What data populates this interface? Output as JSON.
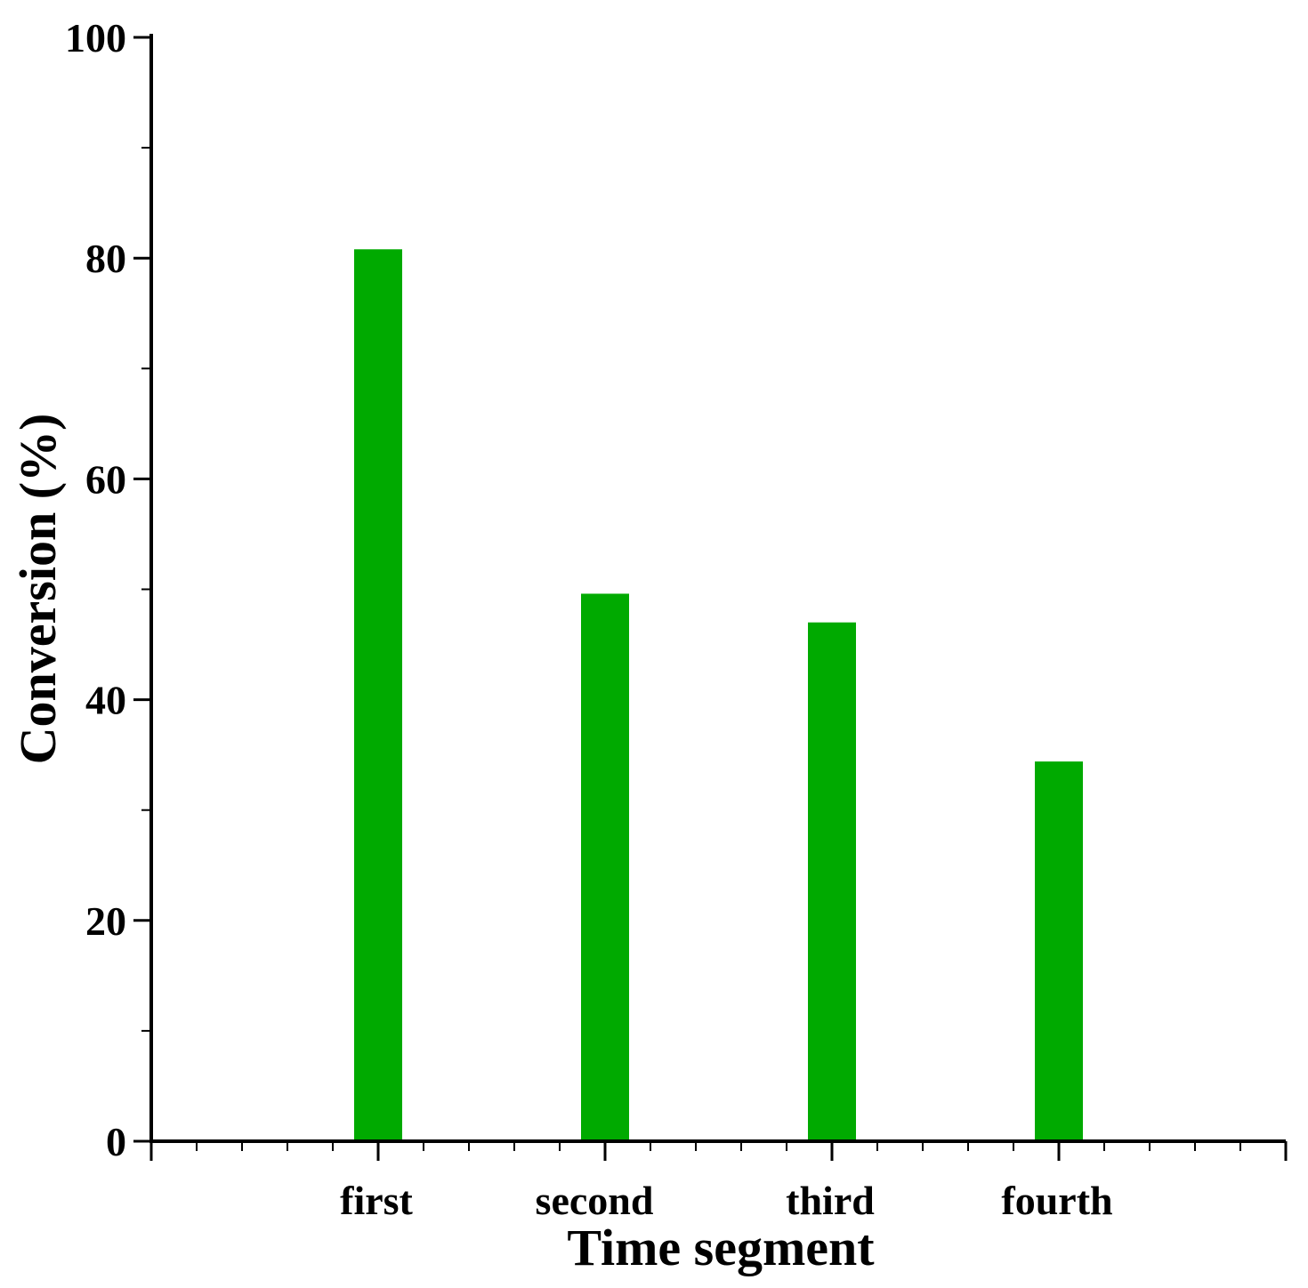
{
  "chart_data": {
    "type": "bar",
    "title": "",
    "xlabel": "Time segment",
    "ylabel": "Conversion (%)",
    "categories": [
      "first",
      "second",
      "third",
      "fourth"
    ],
    "values": [
      80.8,
      49.6,
      47.0,
      34.4
    ],
    "ylim": [
      0,
      100
    ],
    "yticks": [
      0,
      20,
      40,
      60,
      80,
      100
    ],
    "bar_color": "#00aa00",
    "grid": false,
    "legend": "none"
  }
}
